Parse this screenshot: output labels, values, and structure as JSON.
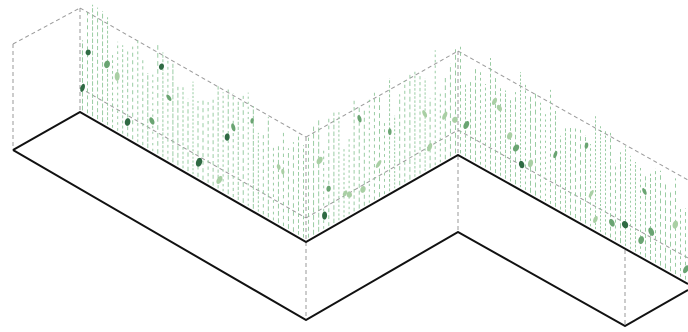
{
  "diagram": {
    "kind": "axonometric-green-wall",
    "has_text": false,
    "colors": {
      "background": "#ffffff",
      "outline": "#111111",
      "dashed": "#9a9a9a",
      "stem": "#8fc79a",
      "leaf_light": "#a9cfa4",
      "leaf_mid": "#6aa472",
      "leaf_dark": "#2f6a43"
    }
  }
}
